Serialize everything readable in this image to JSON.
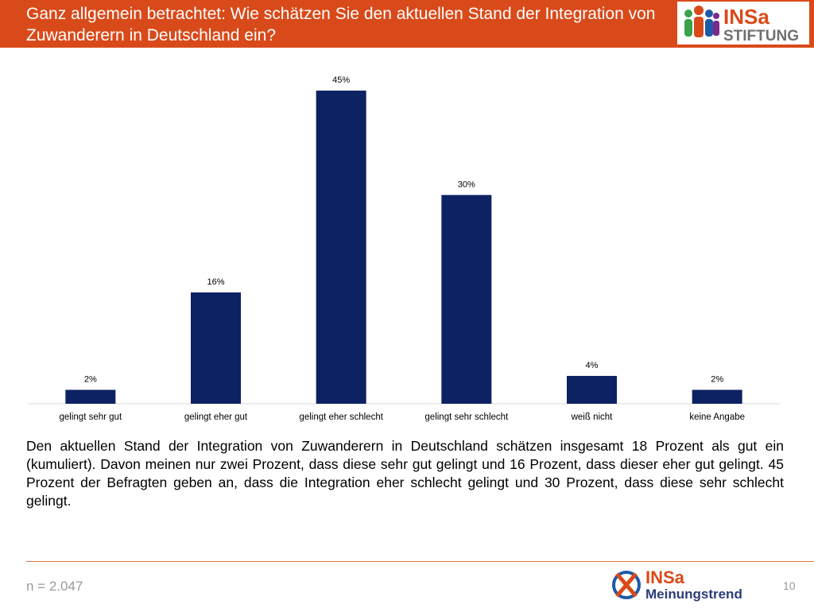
{
  "header": {
    "title": "Ganz allgemein betrachtet: Wie schätzen Sie den aktuellen Stand der Integration von Zuwanderern in Deutschland ein?",
    "bg_color": "#d94a1a"
  },
  "logo_top": {
    "line1": "INSa",
    "line2": "STIFTUNG"
  },
  "chart_data": {
    "type": "bar",
    "categories": [
      "gelingt sehr gut",
      "gelingt eher gut",
      "gelingt eher schlecht",
      "gelingt sehr schlecht",
      "weiß nicht",
      "keine Angabe"
    ],
    "values": [
      2,
      16,
      45,
      30,
      4,
      2
    ],
    "data_labels": [
      "2%",
      "16%",
      "45%",
      "30%",
      "4%",
      "2%"
    ],
    "ylim": [
      0,
      45
    ],
    "bar_color": "#0d2263",
    "grid": false,
    "legend": "none"
  },
  "description": "Den aktuellen Stand der Integration von Zuwanderern in Deutschland schätzen insgesamt 18 Prozent als gut ein (kumuliert). Davon meinen nur zwei Prozent, dass diese sehr gut gelingt und 16 Prozent, dass dieser eher gut gelingt. 45 Prozent der Befragten geben an, dass die Integration eher schlecht gelingt und 30 Prozent, dass diese sehr schlecht gelingt.",
  "footer": {
    "sample_size": "n = 2.047",
    "page_number": "10",
    "logo_line1": "INSa",
    "logo_line2": "Meinungstrend"
  }
}
